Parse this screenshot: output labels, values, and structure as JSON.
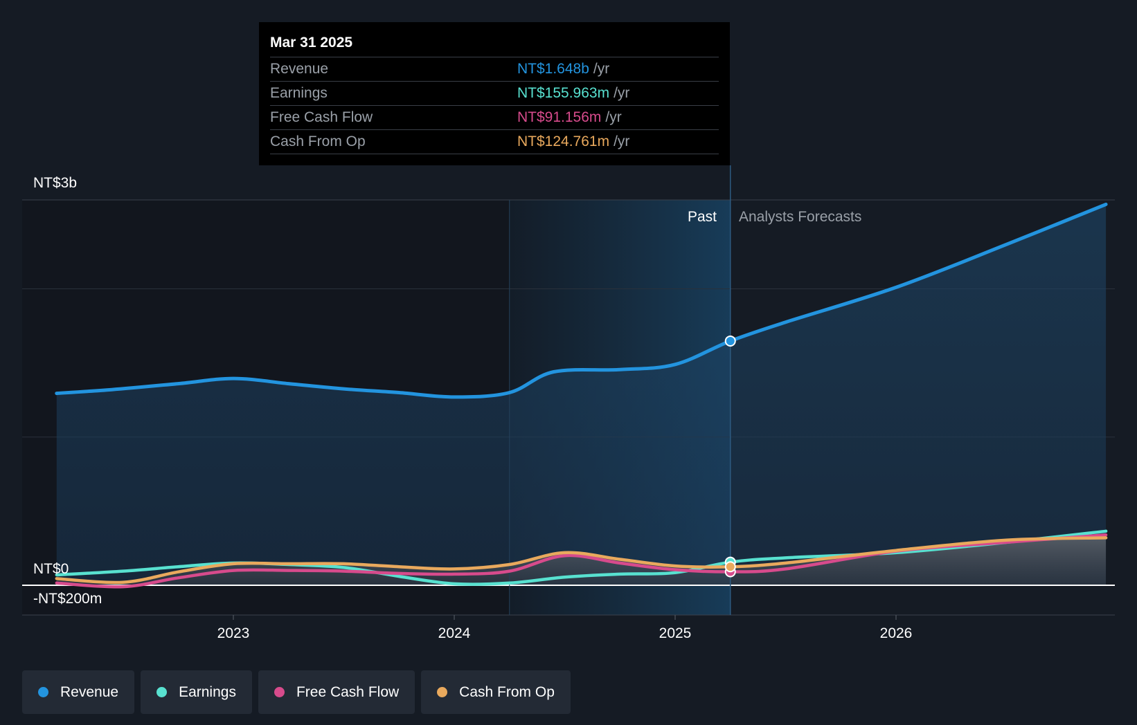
{
  "chart_data": {
    "type": "area",
    "title": "",
    "xlabel": "",
    "ylabel": "",
    "y_axis": {
      "top_label": "NT$3b",
      "zero_label": "NT$0",
      "bottom_label": "-NT$200m",
      "ylim": [
        -200,
        2600
      ],
      "unit": "NT$m",
      "gridlines": [
        1000,
        2000,
        2600
      ]
    },
    "x_axis": {
      "ticks": [
        {
          "label": "2023",
          "value": 2023.0
        },
        {
          "label": "2024",
          "value": 2024.0
        },
        {
          "label": "2025",
          "value": 2025.0
        },
        {
          "label": "2026",
          "value": 2026.0
        }
      ],
      "xlim": [
        2022.0,
        2026.95
      ]
    },
    "past_label": "Past",
    "forecast_label": "Analysts Forecasts",
    "highlight_start": 2024.25,
    "divider_x": 2025.25,
    "series": [
      {
        "name": "Revenue",
        "color": "#2394df",
        "x": [
          2022.2,
          2022.45,
          2022.75,
          2023.0,
          2023.25,
          2023.5,
          2023.75,
          2024.0,
          2024.25,
          2024.45,
          2024.75,
          2025.0,
          2025.25,
          2025.5,
          2026.0,
          2026.5,
          2026.95
        ],
        "values": [
          1295,
          1320,
          1360,
          1395,
          1360,
          1325,
          1300,
          1270,
          1300,
          1440,
          1455,
          1490,
          1648,
          1775,
          2010,
          2300,
          2570
        ]
      },
      {
        "name": "Earnings",
        "color": "#58e1d0",
        "x": [
          2022.2,
          2022.5,
          2022.75,
          2023.0,
          2023.25,
          2023.5,
          2023.75,
          2024.0,
          2024.25,
          2024.5,
          2024.75,
          2025.0,
          2025.25,
          2025.5,
          2026.0,
          2026.5,
          2026.95
        ],
        "values": [
          70,
          95,
          125,
          150,
          140,
          120,
          60,
          10,
          15,
          55,
          75,
          85,
          155.963,
          185,
          220,
          290,
          365
        ]
      },
      {
        "name": "Free Cash Flow",
        "color": "#d74b8c",
        "x": [
          2022.2,
          2022.5,
          2022.75,
          2023.0,
          2023.25,
          2023.5,
          2023.75,
          2024.0,
          2024.25,
          2024.5,
          2024.75,
          2025.0,
          2025.25,
          2025.5,
          2026.0,
          2026.5,
          2026.95
        ],
        "values": [
          15,
          -10,
          50,
          100,
          100,
          95,
          80,
          75,
          95,
          200,
          150,
          105,
          91.156,
          110,
          230,
          290,
          340
        ]
      },
      {
        "name": "Cash From Op",
        "color": "#e9a95d",
        "x": [
          2022.2,
          2022.5,
          2022.75,
          2023.0,
          2023.25,
          2023.5,
          2023.75,
          2024.0,
          2024.25,
          2024.5,
          2024.75,
          2025.0,
          2025.25,
          2025.5,
          2026.0,
          2026.5,
          2026.95
        ],
        "values": [
          45,
          20,
          90,
          145,
          145,
          145,
          125,
          110,
          140,
          220,
          175,
          130,
          124.761,
          150,
          235,
          305,
          320
        ]
      }
    ],
    "tooltip": {
      "date": "Mar 31 2025",
      "rows": [
        {
          "label": "Revenue",
          "value": "NT$1.648b",
          "unit": "/yr",
          "color": "#2394df"
        },
        {
          "label": "Earnings",
          "value": "NT$155.963m",
          "unit": "/yr",
          "color": "#58e1d0"
        },
        {
          "label": "Free Cash Flow",
          "value": "NT$91.156m",
          "unit": "/yr",
          "color": "#d74b8c"
        },
        {
          "label": "Cash From Op",
          "value": "NT$124.761m",
          "unit": "/yr",
          "color": "#e9a95d"
        }
      ]
    }
  },
  "legend": [
    {
      "label": "Revenue",
      "color": "#2394df"
    },
    {
      "label": "Earnings",
      "color": "#58e1d0"
    },
    {
      "label": "Free Cash Flow",
      "color": "#d74b8c"
    },
    {
      "label": "Cash From Op",
      "color": "#e9a95d"
    }
  ]
}
